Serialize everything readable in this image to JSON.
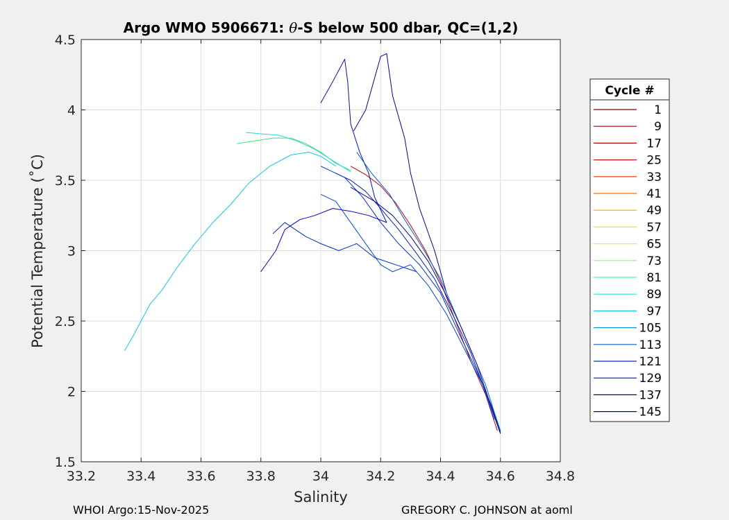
{
  "chart_data": {
    "type": "line",
    "title_main": "Argo WMO 5906671: ",
    "title_theta": "θ",
    "title_rest": "-S below 500 dbar,  QC=(1,2)",
    "xlabel": "Salinity",
    "ylabel": "Potential Temperature (˚C)",
    "xlim": [
      33.2,
      34.8
    ],
    "ylim": [
      1.5,
      4.5
    ],
    "xticks": [
      33.2,
      33.4,
      33.6,
      33.8,
      34,
      34.2,
      34.4,
      34.6,
      34.8
    ],
    "xtick_labels": [
      "33.2",
      "33.4",
      "33.6",
      "33.8",
      "34",
      "34.2",
      "34.4",
      "34.6",
      "34.8"
    ],
    "yticks": [
      1.5,
      2,
      2.5,
      3,
      3.5,
      4,
      4.5
    ],
    "ytick_labels": [
      "1.5",
      "2",
      "2.5",
      "3",
      "3.5",
      "4",
      "4.5"
    ],
    "grid": true,
    "legend_title": "Cycle #",
    "legend_position": "right-outside",
    "legend": [
      {
        "label": "1",
        "color": "#800000"
      },
      {
        "label": "9",
        "color": "#9a0000"
      },
      {
        "label": "17",
        "color": "#b40000"
      },
      {
        "label": "25",
        "color": "#d01010"
      },
      {
        "label": "33",
        "color": "#e03000"
      },
      {
        "label": "41",
        "color": "#ff6a00"
      },
      {
        "label": "49",
        "color": "#ffa500"
      },
      {
        "label": "57",
        "color": "#f6e800"
      },
      {
        "label": "65",
        "color": "#c6ff30"
      },
      {
        "label": "73",
        "color": "#80ff70"
      },
      {
        "label": "81",
        "color": "#40ff9a"
      },
      {
        "label": "89",
        "color": "#20e8c8"
      },
      {
        "label": "97",
        "color": "#10c8e8"
      },
      {
        "label": "105",
        "color": "#0098e0"
      },
      {
        "label": "113",
        "color": "#0060d0"
      },
      {
        "label": "121",
        "color": "#0030c0"
      },
      {
        "label": "129",
        "color": "#0010b0"
      },
      {
        "label": "137",
        "color": "#000096"
      },
      {
        "label": "145",
        "color": "#00007e"
      }
    ],
    "series": [
      {
        "name": "cyan-long",
        "color": "#10c8e8",
        "points": [
          [
            33.345,
            2.29
          ],
          [
            33.37,
            2.38
          ],
          [
            33.4,
            2.5
          ],
          [
            33.43,
            2.62
          ],
          [
            33.47,
            2.72
          ],
          [
            33.52,
            2.88
          ],
          [
            33.58,
            3.05
          ],
          [
            33.64,
            3.2
          ],
          [
            33.7,
            3.33
          ],
          [
            33.76,
            3.48
          ],
          [
            33.83,
            3.6
          ],
          [
            33.9,
            3.68
          ],
          [
            33.96,
            3.7
          ],
          [
            34.0,
            3.67
          ],
          [
            34.05,
            3.6
          ]
        ]
      },
      {
        "name": "green-top",
        "color": "#40e070",
        "points": [
          [
            33.72,
            3.76
          ],
          [
            33.78,
            3.78
          ],
          [
            33.84,
            3.8
          ],
          [
            33.9,
            3.8
          ],
          [
            33.95,
            3.76
          ],
          [
            34.0,
            3.7
          ],
          [
            34.05,
            3.62
          ],
          [
            34.1,
            3.57
          ]
        ]
      },
      {
        "name": "cyan-top",
        "color": "#20d8e0",
        "points": [
          [
            33.75,
            3.84
          ],
          [
            33.8,
            3.83
          ],
          [
            33.86,
            3.82
          ],
          [
            33.92,
            3.78
          ],
          [
            33.98,
            3.72
          ],
          [
            34.04,
            3.64
          ],
          [
            34.1,
            3.56
          ]
        ]
      },
      {
        "name": "red-core",
        "color": "#c00000",
        "points": [
          [
            34.1,
            3.6
          ],
          [
            34.15,
            3.54
          ],
          [
            34.2,
            3.46
          ],
          [
            34.25,
            3.34
          ],
          [
            34.3,
            3.18
          ],
          [
            34.35,
            3.0
          ],
          [
            34.4,
            2.78
          ],
          [
            34.45,
            2.5
          ],
          [
            34.5,
            2.22
          ],
          [
            34.55,
            1.98
          ],
          [
            34.59,
            1.72
          ]
        ]
      },
      {
        "name": "blue-main-1",
        "color": "#0020c0",
        "points": [
          [
            34.05,
            3.55
          ],
          [
            34.1,
            3.5
          ],
          [
            34.15,
            3.42
          ],
          [
            34.2,
            3.3
          ],
          [
            34.26,
            3.15
          ],
          [
            34.32,
            2.98
          ],
          [
            34.38,
            2.8
          ],
          [
            34.44,
            2.55
          ],
          [
            34.5,
            2.28
          ],
          [
            34.55,
            2.0
          ],
          [
            34.6,
            1.7
          ]
        ]
      },
      {
        "name": "blue-main-2",
        "color": "#0030d0",
        "points": [
          [
            34.0,
            3.6
          ],
          [
            34.08,
            3.52
          ],
          [
            34.14,
            3.38
          ],
          [
            34.2,
            3.2
          ],
          [
            34.26,
            3.05
          ],
          [
            34.33,
            2.9
          ],
          [
            34.4,
            2.7
          ],
          [
            34.46,
            2.42
          ],
          [
            34.52,
            2.15
          ],
          [
            34.57,
            1.9
          ],
          [
            34.6,
            1.71
          ]
        ]
      },
      {
        "name": "spike-tall",
        "color": "#0010b0",
        "points": [
          [
            34.0,
            4.05
          ],
          [
            34.04,
            4.2
          ],
          [
            34.08,
            4.36
          ],
          [
            34.09,
            4.2
          ],
          [
            34.1,
            3.9
          ],
          [
            34.13,
            3.7
          ],
          [
            34.16,
            3.55
          ],
          [
            34.18,
            3.38
          ],
          [
            34.22,
            3.2
          ]
        ]
      },
      {
        "name": "spike-right",
        "color": "#00008e",
        "points": [
          [
            34.11,
            3.85
          ],
          [
            34.15,
            4.0
          ],
          [
            34.2,
            4.38
          ],
          [
            34.22,
            4.4
          ],
          [
            34.24,
            4.1
          ],
          [
            34.28,
            3.8
          ],
          [
            34.3,
            3.55
          ],
          [
            34.33,
            3.3
          ],
          [
            34.38,
            3.0
          ],
          [
            34.42,
            2.7
          ]
        ]
      },
      {
        "name": "left-branch",
        "color": "#0000c8",
        "points": [
          [
            33.8,
            2.85
          ],
          [
            33.85,
            3.0
          ],
          [
            33.88,
            3.15
          ],
          [
            33.93,
            3.22
          ],
          [
            33.98,
            3.25
          ],
          [
            34.04,
            3.3
          ],
          [
            34.1,
            3.28
          ],
          [
            34.16,
            3.25
          ],
          [
            34.22,
            3.2
          ]
        ]
      },
      {
        "name": "left-wiggle",
        "color": "#0028c8",
        "points": [
          [
            33.84,
            3.12
          ],
          [
            33.88,
            3.2
          ],
          [
            33.95,
            3.1
          ],
          [
            34.0,
            3.05
          ],
          [
            34.06,
            3.0
          ],
          [
            34.12,
            3.05
          ],
          [
            34.18,
            2.95
          ],
          [
            34.25,
            2.9
          ],
          [
            34.32,
            2.85
          ]
        ]
      },
      {
        "name": "mid-curve",
        "color": "#0048d8",
        "points": [
          [
            34.0,
            3.4
          ],
          [
            34.05,
            3.35
          ],
          [
            34.1,
            3.2
          ],
          [
            34.15,
            3.05
          ],
          [
            34.2,
            2.9
          ],
          [
            34.24,
            2.85
          ],
          [
            34.3,
            2.9
          ],
          [
            34.36,
            2.75
          ],
          [
            34.42,
            2.55
          ],
          [
            34.48,
            2.3
          ],
          [
            34.54,
            2.05
          ],
          [
            34.58,
            1.8
          ]
        ]
      },
      {
        "name": "blue-main-3",
        "color": "#0060e0",
        "points": [
          [
            34.12,
            3.7
          ],
          [
            34.17,
            3.55
          ],
          [
            34.23,
            3.4
          ],
          [
            34.28,
            3.22
          ],
          [
            34.34,
            3.02
          ],
          [
            34.4,
            2.8
          ],
          [
            34.45,
            2.55
          ],
          [
            34.5,
            2.3
          ],
          [
            34.55,
            2.05
          ],
          [
            34.58,
            1.85
          ],
          [
            34.6,
            1.72
          ]
        ]
      },
      {
        "name": "blue-main-4",
        "color": "#000096",
        "points": [
          [
            34.1,
            3.45
          ],
          [
            34.18,
            3.35
          ],
          [
            34.24,
            3.25
          ],
          [
            34.3,
            3.1
          ],
          [
            34.36,
            2.92
          ],
          [
            34.42,
            2.68
          ],
          [
            34.47,
            2.45
          ],
          [
            34.52,
            2.2
          ],
          [
            34.56,
            1.95
          ],
          [
            34.6,
            1.7
          ]
        ]
      }
    ]
  },
  "footer": {
    "left": "WHOI Argo:15-Nov-2025",
    "right": "GREGORY C. JOHNSON at aoml"
  }
}
